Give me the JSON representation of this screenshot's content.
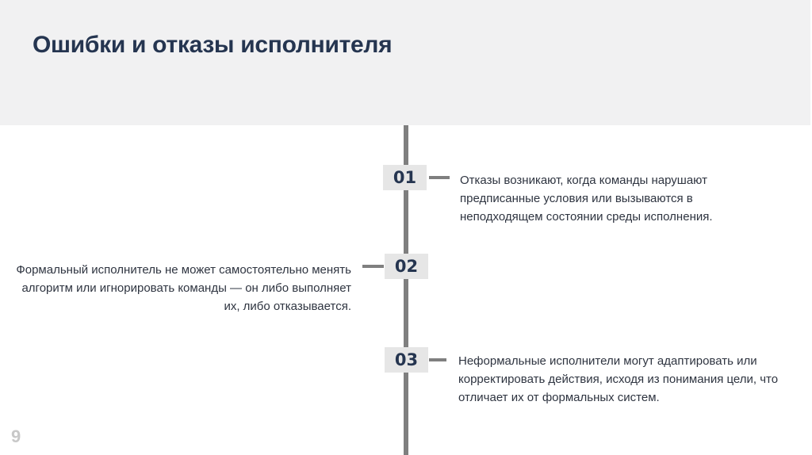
{
  "title": "Ошибки и отказы исполнителя",
  "items": [
    {
      "number": "01",
      "text": "Отказы возникают, когда команды нарушают предписанные условия или вызываются в неподходящем состоянии среды исполнения.",
      "side": "right"
    },
    {
      "number": "02",
      "text": "Формальный исполнитель не может самостоятельно менять алгоритм или игнорировать команды — он либо выполняет их, либо отказывается.",
      "side": "left"
    },
    {
      "number": "03",
      "text": "Неформальные исполнители могут адаптировать или корректировать действия, исходя из понимания цели, что отличает их от формальных систем.",
      "side": "right"
    }
  ],
  "page_number": "9",
  "colors": {
    "header_bg": "#f1f1f2",
    "title": "#253550",
    "timeline": "#7f7f7f",
    "box_bg": "#e6e6e6"
  }
}
